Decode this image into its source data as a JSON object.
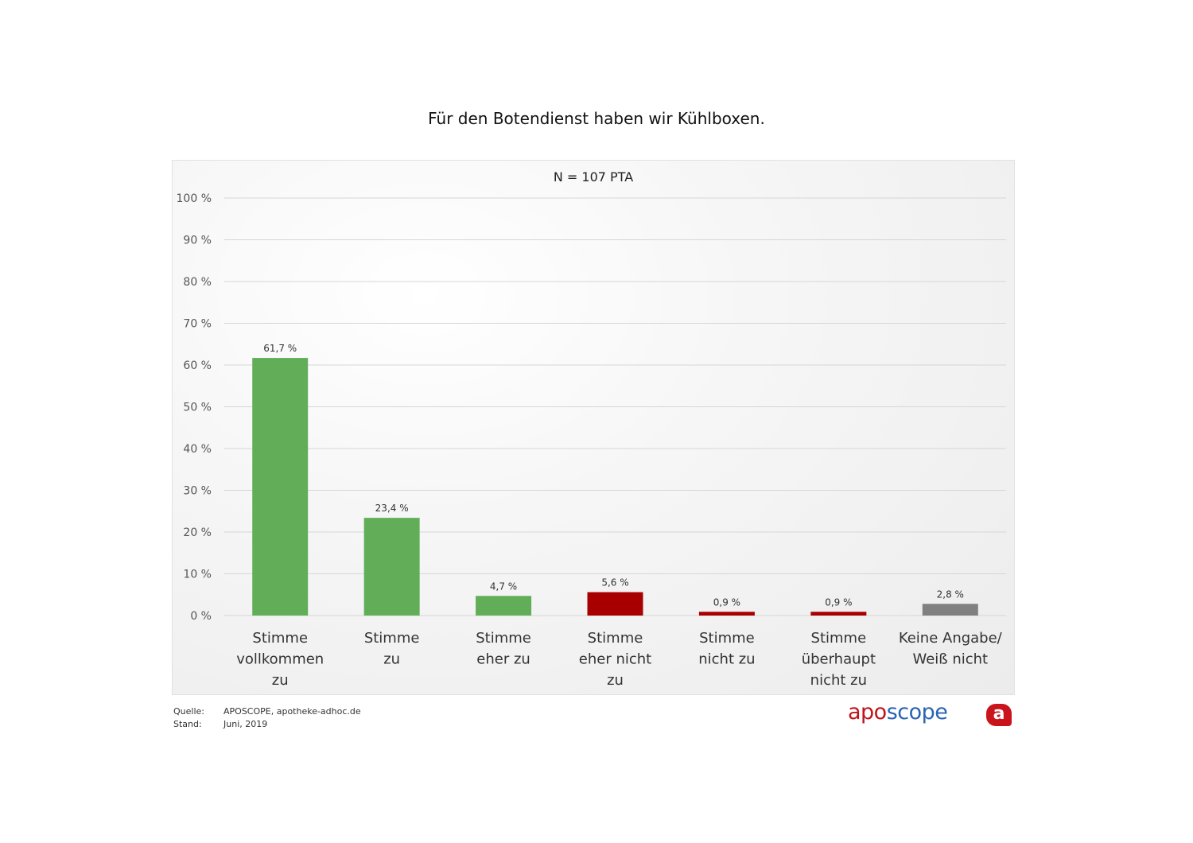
{
  "chart_data": {
    "type": "bar",
    "title": "Für den Botendienst haben wir Kühlboxen.",
    "subtitle": "N = 107 PTA",
    "xlabel": "",
    "ylabel": "",
    "ylim": [
      0,
      100
    ],
    "yticks": [
      "0 %",
      "10 %",
      "20 %",
      "30 %",
      "40 %",
      "50 %",
      "60 %",
      "70 %",
      "80 %",
      "90 %",
      "100 %"
    ],
    "grid": true,
    "categories": [
      [
        "Stimme",
        "vollkommen",
        "zu"
      ],
      [
        "Stimme",
        "zu"
      ],
      [
        "Stimme",
        "eher zu"
      ],
      [
        "Stimme",
        "eher nicht",
        "zu"
      ],
      [
        "Stimme",
        "nicht zu"
      ],
      [
        "Stimme",
        "überhaupt",
        "nicht zu"
      ],
      [
        "Keine Angabe/",
        "Weiß nicht"
      ]
    ],
    "values": [
      61.7,
      23.4,
      4.7,
      5.6,
      0.9,
      0.9,
      2.8
    ],
    "data_labels": [
      "61,7 %",
      "23,4 %",
      "4,7 %",
      "5,6 %",
      "0,9 %",
      "0,9 %",
      "2,8 %"
    ],
    "colors": [
      "#62ae58",
      "#62ae58",
      "#62ae58",
      "#a80000",
      "#a80000",
      "#a80000",
      "#808080"
    ]
  },
  "footer": {
    "source_label": "Quelle:",
    "source_value": "APOSCOPE, apotheke-adhoc.de",
    "date_label": "Stand:",
    "date_value": "Juni, 2019"
  },
  "logo": {
    "part1": "apo",
    "part2": "scope",
    "mark": "a"
  }
}
